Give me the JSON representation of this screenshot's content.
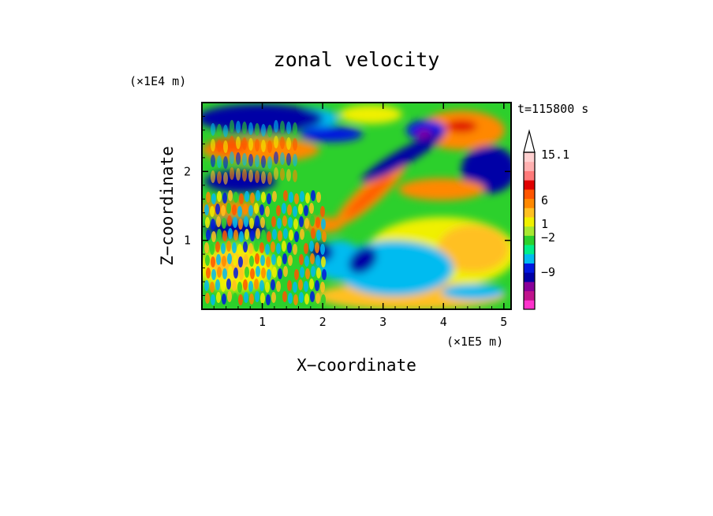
{
  "chart_data": {
    "type": "heatmap",
    "title": "zonal velocity",
    "xlabel": "X−coordinate",
    "ylabel": "Z−coordinate",
    "x_unit": "(×1E5 m)",
    "y_unit": "(×1E4 m)",
    "time_label": "t=115800 s",
    "xlim": [
      0,
      5.12
    ],
    "ylim": [
      0,
      3.0
    ],
    "x_ticks": [
      "1",
      "2",
      "3",
      "4",
      "5"
    ],
    "y_ticks": [
      "1",
      "2"
    ],
    "colorbar": {
      "labels": [
        "15.1",
        "6",
        "1",
        "−2",
        "−9"
      ],
      "colors": [
        "#ff33cc",
        "#c0148c",
        "#880099",
        "#0000a6",
        "#0018e0",
        "#00bbf0",
        "#00ee88",
        "#2cd02c",
        "#a8e830",
        "#f0f000",
        "#ffc020",
        "#ff8800",
        "#ff5500",
        "#e00000",
        "#ff7a7a",
        "#ffb0b0",
        "#ffd0d0"
      ],
      "extend": "max"
    }
  }
}
